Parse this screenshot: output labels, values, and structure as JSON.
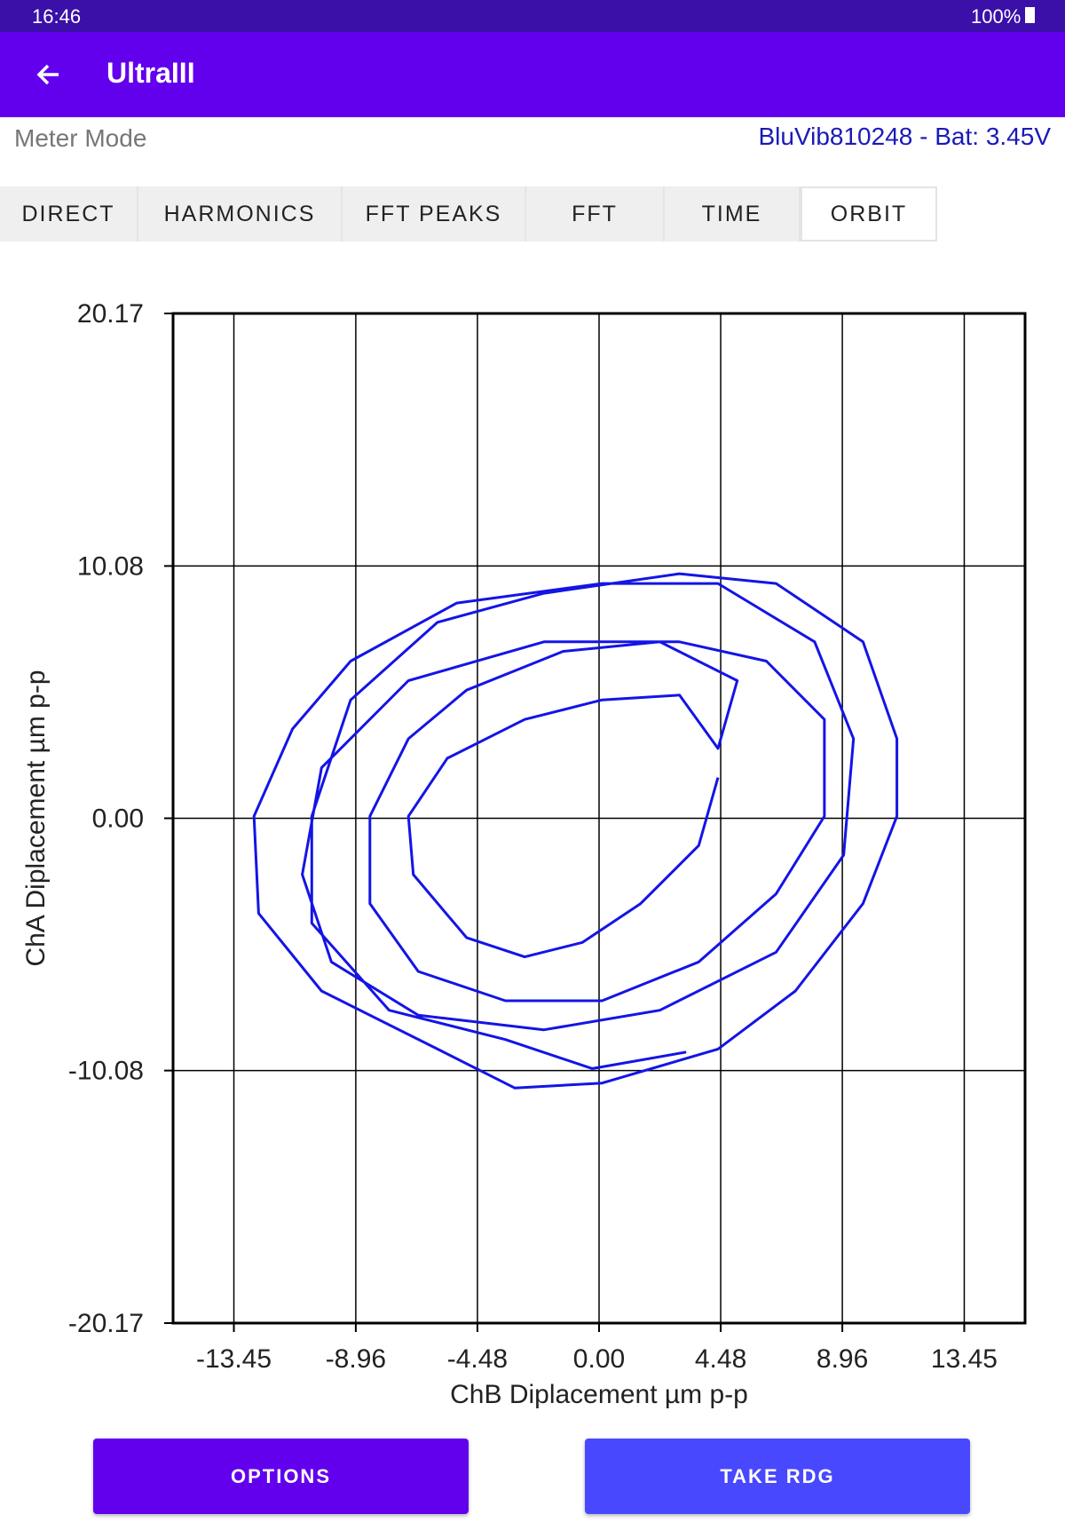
{
  "status_bar": {
    "time": "16:46",
    "battery": "100%"
  },
  "app_bar": {
    "title": "UltraIII"
  },
  "header": {
    "mode": "Meter Mode",
    "device": "BluVib810248 - Bat: 3.45V"
  },
  "tabs": [
    "DIRECT",
    "HARMONICS",
    "FFT PEAKS",
    "FFT",
    "TIME",
    "ORBIT"
  ],
  "chart_data": {
    "type": "line",
    "x_label": "ChB Diplacement µm p-p",
    "y_label": "ChA Diplacement µm p-p",
    "color": "#1414e6",
    "grid": true,
    "xlim": [
      -15.69,
      15.69
    ],
    "xticks": [
      -13.45,
      -8.96,
      -4.48,
      {
        "value": 0,
        "label": "0.00"
      },
      4.48,
      8.96,
      13.45
    ],
    "ylim": [
      -20.17,
      20.17
    ],
    "yticks": [
      -20.17,
      -10.08,
      {
        "value": 0,
        "label": "0.00"
      },
      10.08,
      20.17
    ],
    "x": [
      4.38,
      3.67,
      1.53,
      -0.61,
      -2.74,
      -4.88,
      -6.84,
      -7.02,
      -5.59,
      -2.74,
      0.11,
      2.96,
      4.38,
      5.09,
      2.24,
      -1.32,
      -4.88,
      -7.02,
      -8.44,
      -8.44,
      -6.66,
      -3.45,
      0.11,
      3.67,
      6.52,
      8.3,
      8.3,
      6.16,
      2.96,
      -2.03,
      -7.02,
      -10.22,
      -10.93,
      -9.86,
      -6.66,
      -2.03,
      2.24,
      6.52,
      9.01,
      9.37,
      7.94,
      4.38,
      0.11,
      -5.24,
      -9.15,
      -11.29,
      -12.71,
      -12.54,
      -10.22,
      -5.95,
      -3.1,
      0.11,
      4.38,
      7.23,
      9.72,
      10.97,
      10.97,
      9.72,
      6.52,
      2.96,
      -2.03,
      -5.95,
      -9.15,
      -10.58,
      -10.58,
      -7.73,
      -3.45,
      -0.25,
      3.21
    ],
    "values": [
      1.63,
      -1.09,
      -3.41,
      -4.96,
      -5.54,
      -4.77,
      -2.25,
      0.08,
      2.4,
      3.95,
      4.73,
      4.92,
      2.79,
      5.5,
      7.05,
      6.67,
      5.12,
      3.18,
      0.08,
      -3.41,
      -6.12,
      -7.29,
      -7.29,
      -5.74,
      -3.02,
      0.08,
      3.95,
      6.28,
      7.05,
      7.05,
      5.5,
      2.02,
      -2.25,
      -5.74,
      -7.87,
      -8.45,
      -7.67,
      -5.35,
      -1.47,
      3.18,
      7.05,
      9.38,
      9.38,
      8.6,
      6.28,
      3.57,
      0.08,
      -3.8,
      -6.9,
      -9.22,
      -10.78,
      -10.58,
      -9.22,
      -6.9,
      -3.41,
      0.08,
      3.18,
      7.05,
      9.38,
      9.77,
      8.99,
      7.83,
      4.73,
      0.08,
      -4.19,
      -7.67,
      -8.84,
      -10.0,
      -9.34
    ]
  },
  "buttons": [
    "OPTIONS",
    "TAKE RDG"
  ]
}
